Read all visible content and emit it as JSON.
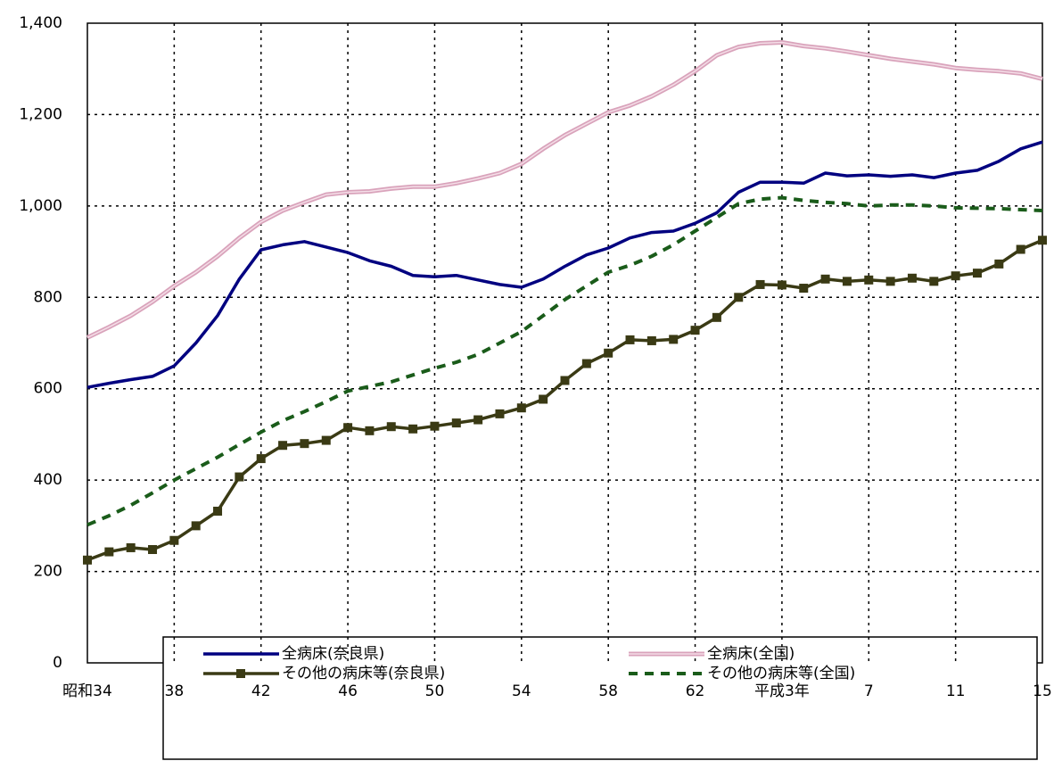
{
  "chart_data": {
    "type": "line",
    "categories": [
      "昭和34",
      null,
      null,
      null,
      "38",
      null,
      null,
      null,
      "42",
      null,
      null,
      null,
      "46",
      null,
      null,
      null,
      "50",
      null,
      null,
      null,
      "54",
      null,
      null,
      null,
      "58",
      null,
      null,
      null,
      "62",
      null,
      null,
      null,
      "平成3年",
      null,
      null,
      null,
      "7",
      null,
      null,
      null,
      "11",
      null,
      null,
      null,
      "15"
    ],
    "ylim": [
      0,
      1400
    ],
    "yticks": [
      0,
      200,
      400,
      600,
      800,
      {
        "value": 1000,
        "label": "1,000"
      },
      {
        "value": 1200,
        "label": "1,200"
      },
      {
        "value": 1400,
        "label": "1,400"
      }
    ],
    "grid": true,
    "series": [
      {
        "name": "全病床(奈良県)",
        "color": "#000080",
        "line_style": "solid",
        "values": [
          603,
          612,
          620,
          627,
          650,
          700,
          760,
          840,
          904,
          915,
          922,
          910,
          898,
          880,
          868,
          848,
          845,
          848,
          838,
          828,
          822,
          840,
          868,
          893,
          908,
          930,
          942,
          945,
          962,
          985,
          1030,
          1052,
          1052,
          1050,
          1072,
          1066,
          1068,
          1065,
          1068,
          1062,
          1072,
          1078,
          1098,
          1125,
          1140
        ]
      },
      {
        "name": "全病床(全国)",
        "color": "#d9a3bb",
        "line_style": "double",
        "values": [
          712,
          735,
          760,
          790,
          825,
          855,
          890,
          930,
          965,
          990,
          1008,
          1025,
          1030,
          1032,
          1038,
          1042,
          1042,
          1050,
          1060,
          1072,
          1092,
          1125,
          1155,
          1180,
          1205,
          1220,
          1240,
          1265,
          1295,
          1330,
          1348,
          1356,
          1358,
          1350,
          1345,
          1338,
          1330,
          1322,
          1316,
          1310,
          1302,
          1298,
          1295,
          1290,
          1278
        ]
      },
      {
        "name": "その他の病床等(奈良県)",
        "color": "#3a3a14",
        "line_style": "solid",
        "marker": "square",
        "values": [
          225,
          243,
          252,
          248,
          268,
          300,
          332,
          407,
          447,
          476,
          480,
          487,
          515,
          508,
          517,
          512,
          518,
          525,
          532,
          545,
          558,
          577,
          618,
          655,
          678,
          707,
          705,
          708,
          728,
          756,
          800,
          828,
          827,
          820,
          840,
          835,
          838,
          835,
          842,
          835,
          847,
          853,
          873,
          905,
          925
        ]
      },
      {
        "name": "その他の病床等(全国)",
        "color": "#1a5c1a",
        "line_style": "dashed",
        "values": [
          302,
          322,
          345,
          372,
          400,
          425,
          450,
          478,
          505,
          530,
          550,
          572,
          595,
          605,
          615,
          630,
          645,
          658,
          675,
          700,
          725,
          760,
          795,
          825,
          855,
          870,
          890,
          915,
          945,
          975,
          1005,
          1015,
          1018,
          1012,
          1008,
          1005,
          1000,
          1002,
          1002,
          1000,
          996,
          995,
          994,
          992,
          990
        ]
      }
    ]
  }
}
